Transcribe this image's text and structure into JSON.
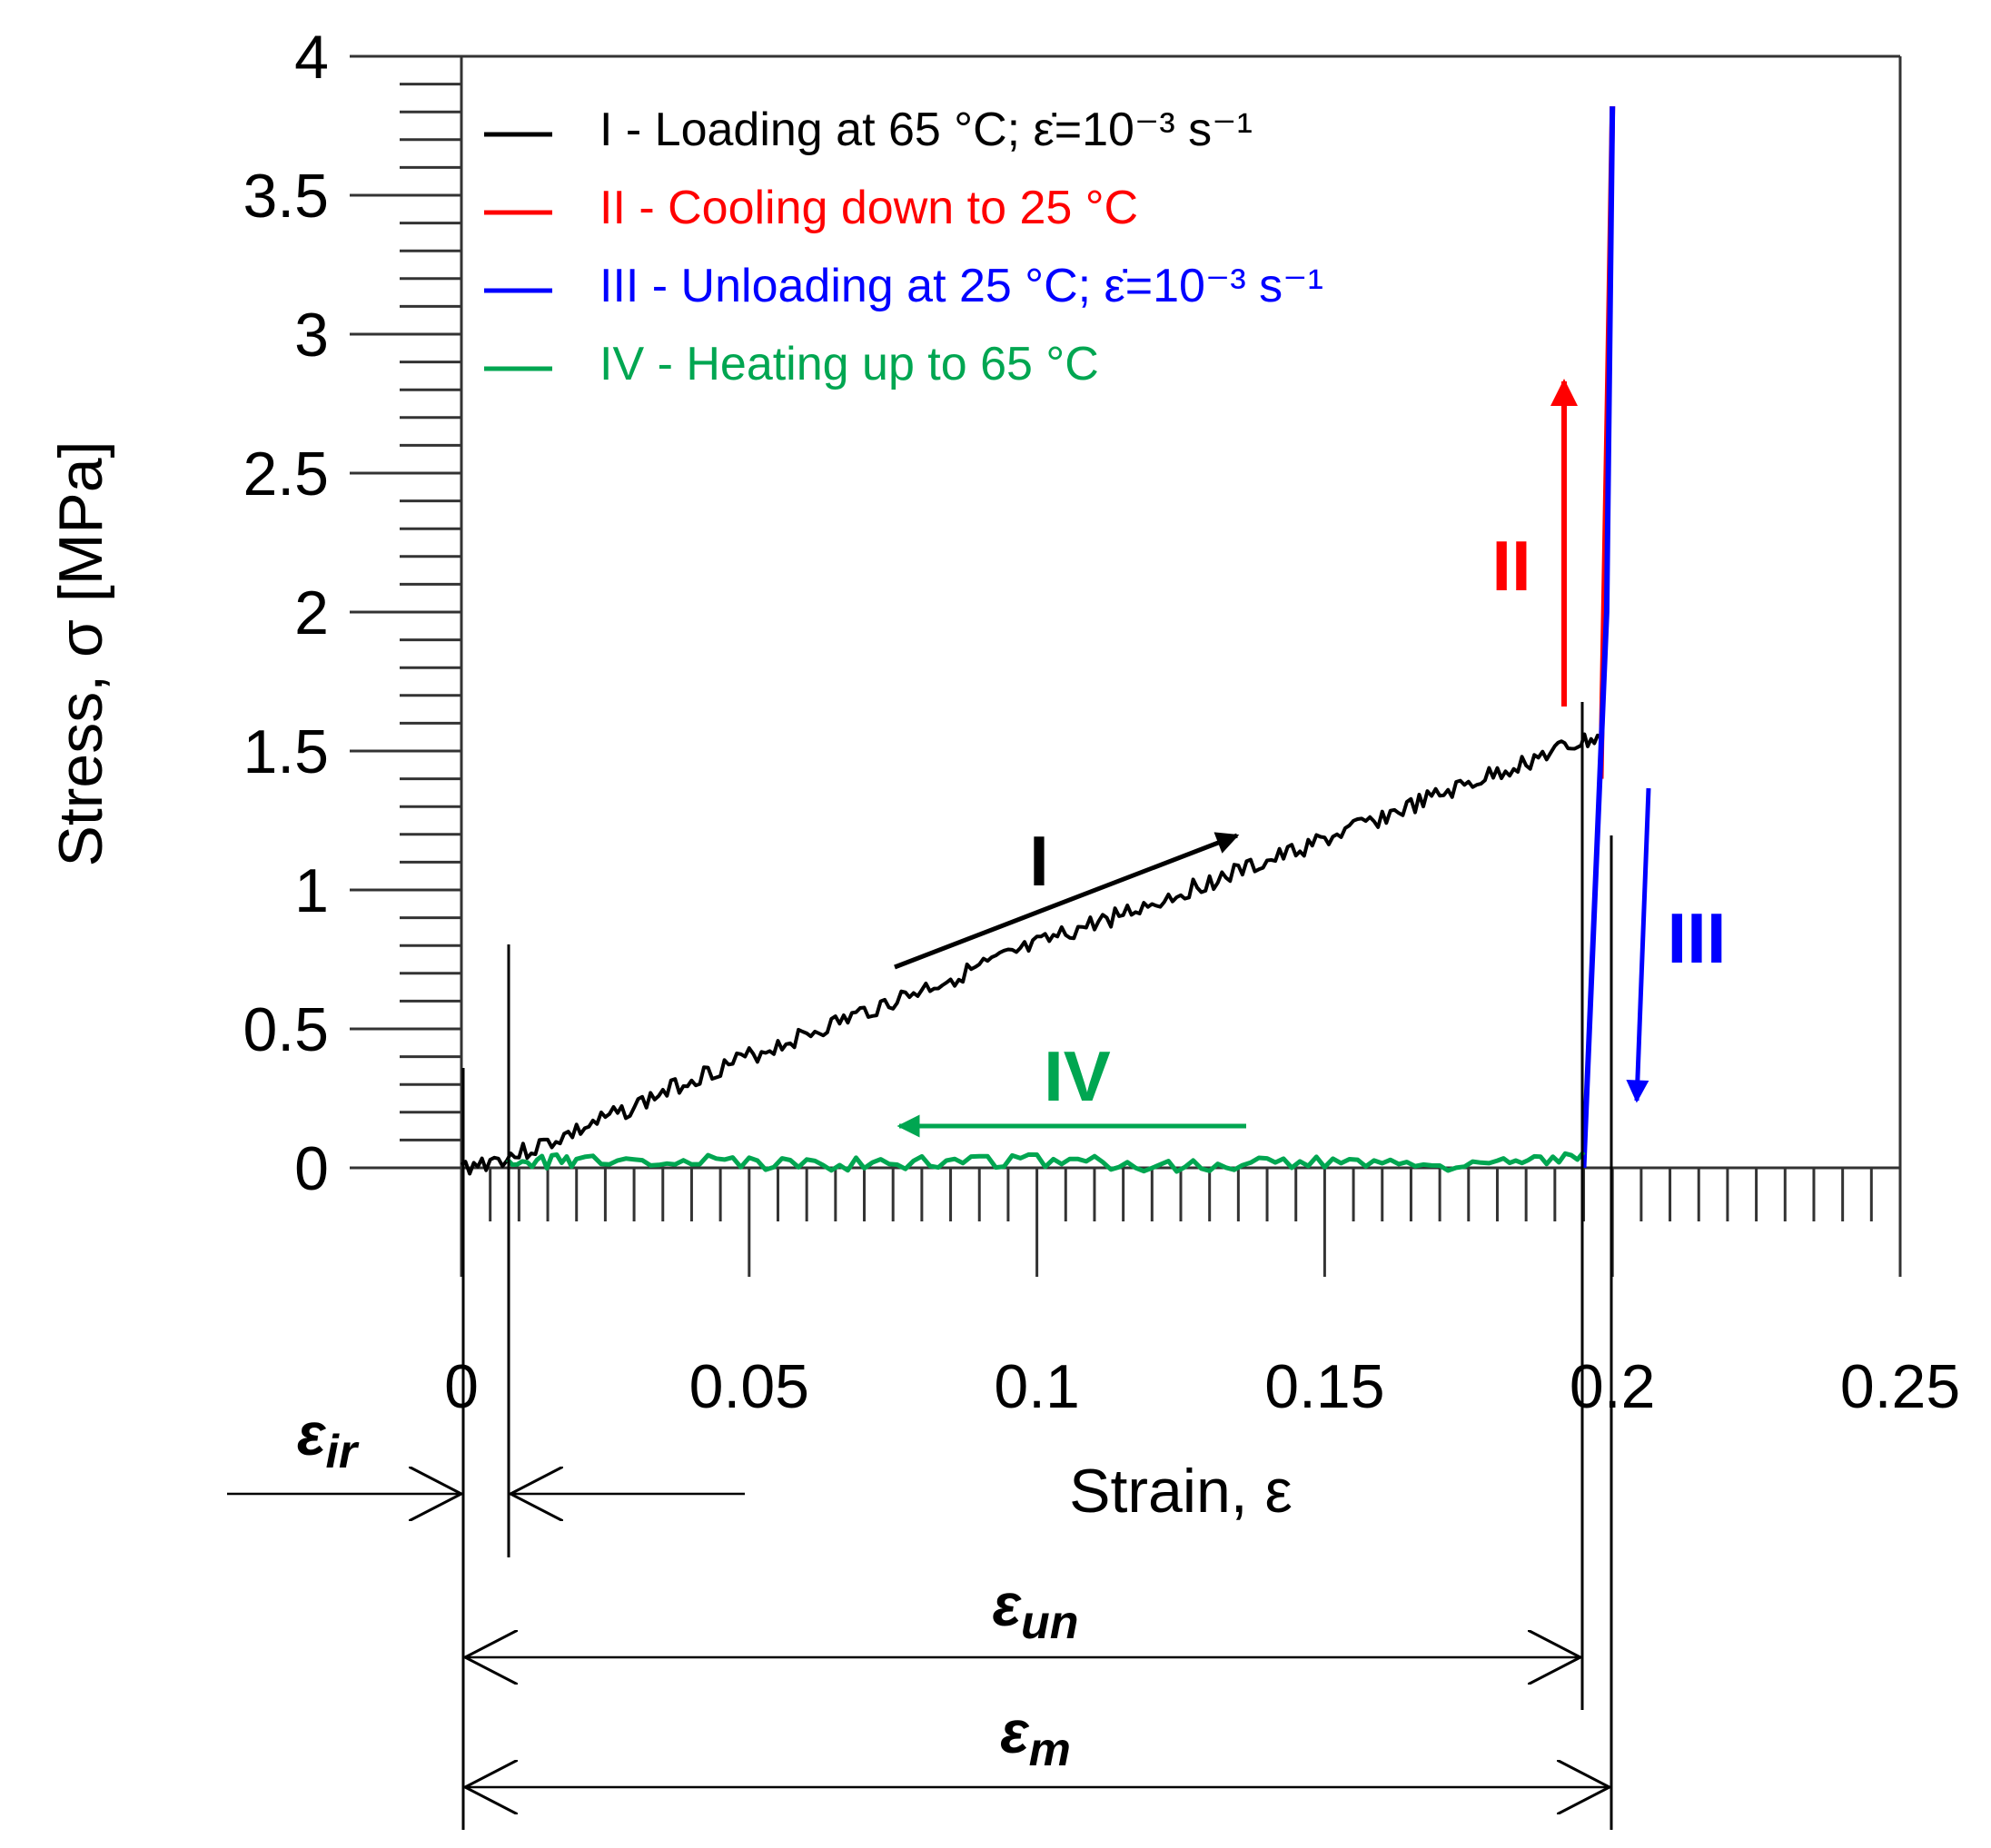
{
  "chart_data": {
    "type": "line",
    "title": "",
    "xlabel": "Strain, ε",
    "ylabel": "Stress, σ  [MPa]",
    "xlim": [
      0,
      0.25
    ],
    "ylim": [
      0,
      4
    ],
    "xticks": [
      "0",
      "0.05",
      "0.1",
      "0.15",
      "0.2",
      "0.25"
    ],
    "yticks": [
      "0",
      "0.5",
      "1",
      "1.5",
      "2",
      "2.5",
      "3",
      "3.5",
      "4"
    ],
    "legend_position": "top-left",
    "series": [
      {
        "name": "I - Loading at 65 °C; ε̇=10⁻³ s⁻¹",
        "color": "#000000",
        "x": [
          0,
          0.01,
          0.02,
          0.03,
          0.04,
          0.05,
          0.06,
          0.07,
          0.08,
          0.09,
          0.1,
          0.11,
          0.12,
          0.13,
          0.14,
          0.15,
          0.16,
          0.17,
          0.18,
          0.19,
          0.198
        ],
        "y": [
          0.0,
          0.05,
          0.13,
          0.22,
          0.32,
          0.4,
          0.48,
          0.56,
          0.64,
          0.72,
          0.8,
          0.88,
          0.95,
          1.03,
          1.1,
          1.18,
          1.26,
          1.34,
          1.42,
          1.5,
          1.55
        ]
      },
      {
        "name": "II - Cooling down to 25 °C",
        "color": "#ff0000",
        "x": [
          0.198,
          0.199,
          0.2
        ],
        "y": [
          1.4,
          2.6,
          3.82
        ]
      },
      {
        "name": "III - Unloading at 25 °C; ε̇=10⁻³ s⁻¹",
        "color": "#0000ff",
        "x": [
          0.2,
          0.199,
          0.195
        ],
        "y": [
          3.82,
          2.0,
          0.0
        ]
      },
      {
        "name": "IV - Heating up to 65 °C",
        "color": "#00a651",
        "x": [
          0.195,
          0.18,
          0.16,
          0.14,
          0.12,
          0.1,
          0.08,
          0.06,
          0.04,
          0.02,
          0.008
        ],
        "y": [
          0.05,
          0.02,
          0.01,
          0.02,
          0.01,
          0.03,
          0.02,
          0.01,
          0.03,
          0.02,
          0.03
        ]
      }
    ],
    "annotations": {
      "segment_labels": [
        {
          "text": "I",
          "color": "#000000"
        },
        {
          "text": "II",
          "color": "#ff0000"
        },
        {
          "text": "III",
          "color": "#0000ff"
        },
        {
          "text": "IV",
          "color": "#00a651"
        }
      ],
      "strain_markers": [
        {
          "symbol": "ε",
          "sub": "ir",
          "from": 0,
          "to": 0.008
        },
        {
          "symbol": "ε",
          "sub": "un",
          "from": 0,
          "to": 0.195
        },
        {
          "symbol": "ε",
          "sub": "m",
          "from": 0,
          "to": 0.2
        }
      ]
    }
  }
}
